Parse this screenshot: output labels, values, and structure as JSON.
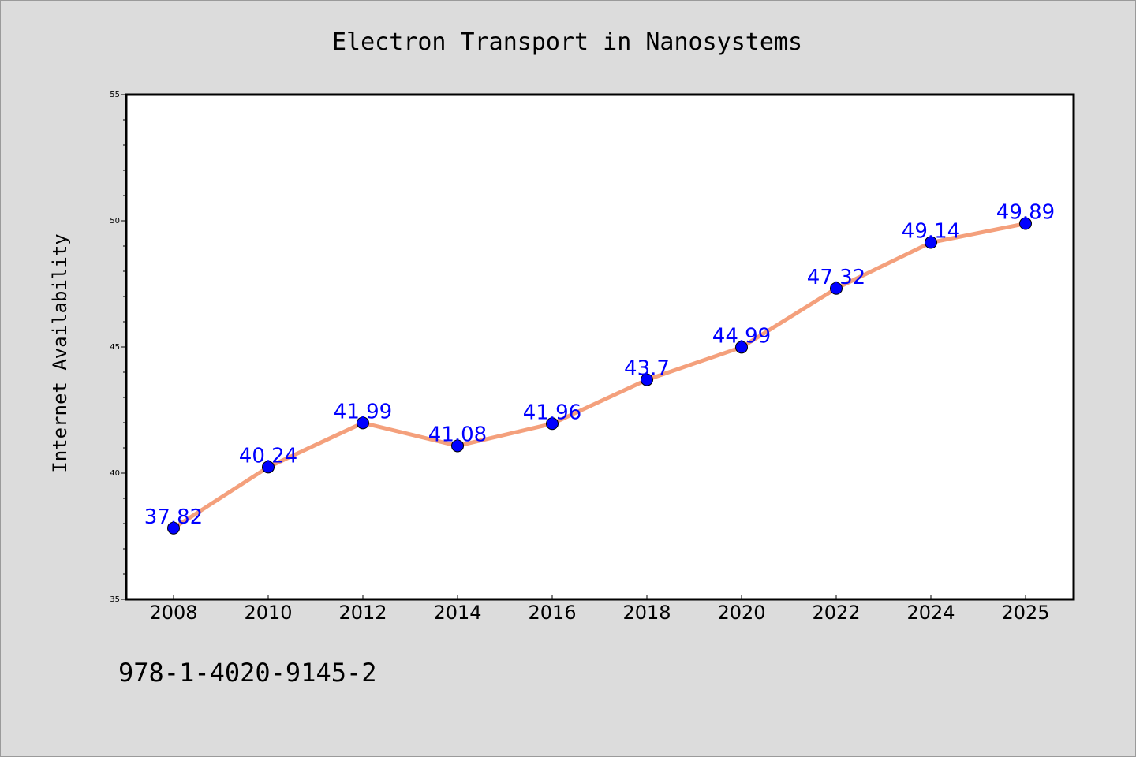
{
  "chart_data": {
    "type": "line",
    "title": "Electron Transport in Nanosystems",
    "xlabel": "",
    "ylabel": "Internet Availability",
    "categories": [
      "2008",
      "2010",
      "2012",
      "2014",
      "2016",
      "2018",
      "2020",
      "2022",
      "2024",
      "2025"
    ],
    "series": [
      {
        "values": [
          37.82,
          40.24,
          41.99,
          41.08,
          41.96,
          43.7,
          44.99,
          47.32,
          49.14,
          49.89
        ],
        "labels": [
          "37.82",
          "40.24",
          "41.99",
          "41.08",
          "41.96",
          "43.7",
          "44.99",
          "47.32",
          "49.14",
          "49.89"
        ]
      }
    ],
    "ylim": [
      35,
      55
    ],
    "yticks": [
      35,
      40,
      45,
      50,
      55
    ],
    "grid": false,
    "colors": {
      "line": "#f4a07c",
      "marker": "#0000ff",
      "label": "#0000ff",
      "plot_bg": "#ffffff",
      "page_bg": "#dcdcdc"
    }
  },
  "footer": {
    "isbn": "978-1-4020-9145-2"
  }
}
